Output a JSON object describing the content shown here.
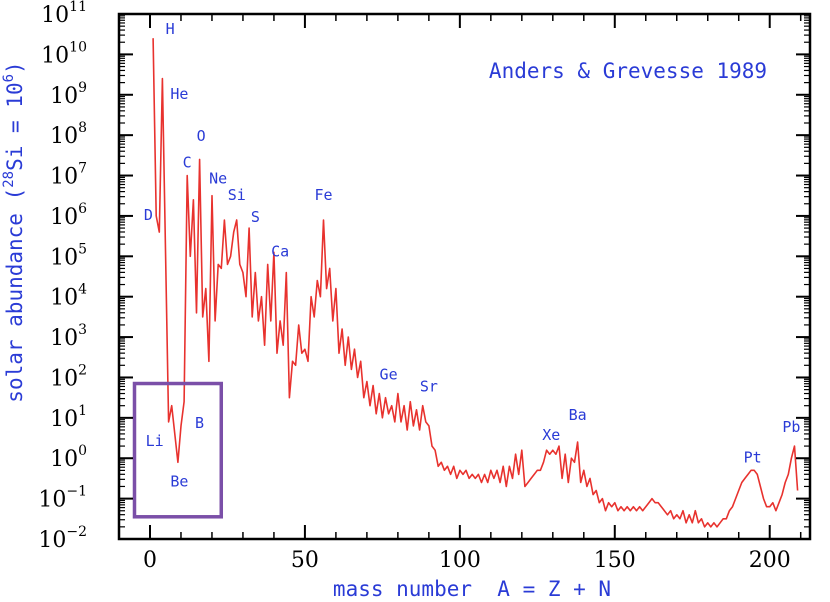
{
  "chart_data": {
    "type": "line",
    "annotation": "Anders & Grevesse 1989",
    "xlabel": "mass number  A = Z + N",
    "ylabel": "solar abundance (28Si = 10^6)",
    "xlim": [
      -10,
      213
    ],
    "ylim_log10": [
      -2,
      11
    ],
    "x_ticks": [
      0,
      50,
      100,
      150,
      200
    ],
    "y_tick_exponents": [
      -2,
      -1,
      0,
      1,
      2,
      3,
      4,
      5,
      6,
      7,
      8,
      9,
      10,
      11
    ],
    "grid": false,
    "line_color": "#e8322e",
    "label_color": "#2a3bd6",
    "box_color": "#7b4fa8",
    "highlight_box": {
      "x": [
        -5,
        23
      ],
      "y_log10": [
        -1.45,
        1.85
      ]
    },
    "series": [
      {
        "points_log10": [
          [
            1,
            10.4
          ],
          [
            2,
            6.0
          ],
          [
            3,
            5.6
          ],
          [
            4,
            9.4
          ],
          [
            6,
            0.9
          ],
          [
            7,
            1.3
          ],
          [
            9,
            -0.1
          ],
          [
            10,
            0.8
          ],
          [
            11,
            1.4
          ],
          [
            12,
            7.0
          ],
          [
            13,
            5.0
          ],
          [
            14,
            6.4
          ],
          [
            15,
            3.6
          ],
          [
            16,
            7.4
          ],
          [
            17,
            3.5
          ],
          [
            18,
            4.2
          ],
          [
            19,
            2.4
          ],
          [
            20,
            6.5
          ],
          [
            21,
            3.4
          ],
          [
            22,
            4.8
          ],
          [
            23,
            4.7
          ],
          [
            24,
            5.9
          ],
          [
            25,
            4.8
          ],
          [
            26,
            5.0
          ],
          [
            27,
            5.6
          ],
          [
            28,
            5.9
          ],
          [
            29,
            4.8
          ],
          [
            30,
            4.6
          ],
          [
            31,
            4.0
          ],
          [
            32,
            5.7
          ],
          [
            33,
            3.5
          ],
          [
            34,
            4.6
          ],
          [
            35,
            3.4
          ],
          [
            36,
            4.0
          ],
          [
            37,
            2.8
          ],
          [
            38,
            4.8
          ],
          [
            39,
            3.4
          ],
          [
            40,
            5.1
          ],
          [
            41,
            2.6
          ],
          [
            42,
            3.4
          ],
          [
            43,
            2.8
          ],
          [
            44,
            4.6
          ],
          [
            45,
            1.5
          ],
          [
            46,
            2.4
          ],
          [
            47,
            2.3
          ],
          [
            48,
            3.3
          ],
          [
            49,
            2.6
          ],
          [
            50,
            2.7
          ],
          [
            51,
            2.4
          ],
          [
            52,
            4.0
          ],
          [
            53,
            3.5
          ],
          [
            54,
            4.4
          ],
          [
            55,
            4.0
          ],
          [
            56,
            5.9
          ],
          [
            57,
            4.2
          ],
          [
            58,
            4.7
          ],
          [
            59,
            3.4
          ],
          [
            60,
            4.2
          ],
          [
            61,
            2.6
          ],
          [
            62,
            3.2
          ],
          [
            63,
            2.3
          ],
          [
            64,
            3.0
          ],
          [
            65,
            2.2
          ],
          [
            66,
            2.7
          ],
          [
            67,
            2.0
          ],
          [
            68,
            2.4
          ],
          [
            69,
            1.5
          ],
          [
            70,
            1.9
          ],
          [
            71,
            1.3
          ],
          [
            72,
            1.8
          ],
          [
            73,
            1.1
          ],
          [
            74,
            1.6
          ],
          [
            75,
            1.0
          ],
          [
            76,
            1.5
          ],
          [
            77,
            1.1
          ],
          [
            78,
            1.3
          ],
          [
            79,
            0.9
          ],
          [
            80,
            1.6
          ],
          [
            81,
            0.9
          ],
          [
            82,
            1.3
          ],
          [
            83,
            0.7
          ],
          [
            84,
            1.4
          ],
          [
            85,
            0.8
          ],
          [
            86,
            1.2
          ],
          [
            87,
            0.7
          ],
          [
            88,
            1.3
          ],
          [
            89,
            0.9
          ],
          [
            90,
            0.8
          ],
          [
            91,
            0.3
          ],
          [
            92,
            0.2
          ],
          [
            93,
            -0.2
          ],
          [
            94,
            -0.1
          ],
          [
            95,
            -0.3
          ],
          [
            96,
            -0.2
          ],
          [
            97,
            -0.4
          ],
          [
            98,
            -0.2
          ],
          [
            99,
            -0.5
          ],
          [
            100,
            -0.3
          ],
          [
            101,
            -0.4
          ],
          [
            102,
            -0.3
          ],
          [
            103,
            -0.5
          ],
          [
            104,
            -0.4
          ],
          [
            105,
            -0.5
          ],
          [
            106,
            -0.4
          ],
          [
            107,
            -0.6
          ],
          [
            108,
            -0.4
          ],
          [
            109,
            -0.6
          ],
          [
            110,
            -0.3
          ],
          [
            111,
            -0.5
          ],
          [
            112,
            -0.3
          ],
          [
            113,
            -0.6
          ],
          [
            114,
            -0.2
          ],
          [
            115,
            -0.7
          ],
          [
            116,
            -0.2
          ],
          [
            117,
            -0.5
          ],
          [
            118,
            0.1
          ],
          [
            119,
            -0.4
          ],
          [
            120,
            0.2
          ],
          [
            121,
            -0.7
          ],
          [
            122,
            -0.6
          ],
          [
            123,
            -0.5
          ],
          [
            124,
            -0.4
          ],
          [
            125,
            -0.3
          ],
          [
            126,
            -0.3
          ],
          [
            127,
            -0.1
          ],
          [
            128,
            0.2
          ],
          [
            129,
            0.1
          ],
          [
            130,
            0.2
          ],
          [
            131,
            0.1
          ],
          [
            132,
            0.3
          ],
          [
            133,
            -0.5
          ],
          [
            134,
            0.1
          ],
          [
            135,
            -0.6
          ],
          [
            136,
            0.0
          ],
          [
            137,
            -0.1
          ],
          [
            138,
            0.4
          ],
          [
            139,
            -0.6
          ],
          [
            140,
            -0.3
          ],
          [
            141,
            -0.7
          ],
          [
            142,
            -0.5
          ],
          [
            143,
            -0.9
          ],
          [
            144,
            -0.8
          ],
          [
            145,
            -1.1
          ],
          [
            146,
            -1.0
          ],
          [
            147,
            -1.3
          ],
          [
            148,
            -1.1
          ],
          [
            149,
            -1.2
          ],
          [
            150,
            -1.1
          ],
          [
            151,
            -1.3
          ],
          [
            152,
            -1.2
          ],
          [
            153,
            -1.3
          ],
          [
            154,
            -1.2
          ],
          [
            155,
            -1.3
          ],
          [
            156,
            -1.2
          ],
          [
            157,
            -1.3
          ],
          [
            158,
            -1.2
          ],
          [
            159,
            -1.3
          ],
          [
            160,
            -1.2
          ],
          [
            161,
            -1.1
          ],
          [
            162,
            -1.0
          ],
          [
            163,
            -1.1
          ],
          [
            164,
            -1.1
          ],
          [
            165,
            -1.2
          ],
          [
            166,
            -1.3
          ],
          [
            167,
            -1.4
          ],
          [
            168,
            -1.3
          ],
          [
            169,
            -1.5
          ],
          [
            170,
            -1.4
          ],
          [
            171,
            -1.5
          ],
          [
            172,
            -1.3
          ],
          [
            173,
            -1.6
          ],
          [
            174,
            -1.4
          ],
          [
            175,
            -1.6
          ],
          [
            176,
            -1.3
          ],
          [
            177,
            -1.6
          ],
          [
            178,
            -1.5
          ],
          [
            179,
            -1.7
          ],
          [
            180,
            -1.6
          ],
          [
            181,
            -1.7
          ],
          [
            182,
            -1.6
          ],
          [
            183,
            -1.7
          ],
          [
            184,
            -1.6
          ],
          [
            185,
            -1.5
          ],
          [
            186,
            -1.5
          ],
          [
            187,
            -1.3
          ],
          [
            188,
            -1.2
          ],
          [
            189,
            -1.0
          ],
          [
            190,
            -0.8
          ],
          [
            191,
            -0.6
          ],
          [
            192,
            -0.5
          ],
          [
            193,
            -0.4
          ],
          [
            194,
            -0.3
          ],
          [
            195,
            -0.3
          ],
          [
            196,
            -0.4
          ],
          [
            197,
            -0.7
          ],
          [
            198,
            -1.0
          ],
          [
            199,
            -1.2
          ],
          [
            200,
            -1.2
          ],
          [
            201,
            -1.1
          ],
          [
            202,
            -1.3
          ],
          [
            203,
            -1.1
          ],
          [
            204,
            -0.9
          ],
          [
            205,
            -0.6
          ],
          [
            206,
            -0.4
          ],
          [
            207,
            0.0
          ],
          [
            208,
            0.3
          ],
          [
            209,
            -0.8
          ]
        ]
      }
    ],
    "element_labels": [
      {
        "text": "H",
        "x": 6.5,
        "y_log10": 10.5
      },
      {
        "text": "He",
        "x": 9.5,
        "y_log10": 8.9
      },
      {
        "text": "D",
        "x": -0.5,
        "y_log10": 5.9
      },
      {
        "text": "Li",
        "x": 1.5,
        "y_log10": 0.3
      },
      {
        "text": "Be",
        "x": 9.5,
        "y_log10": -0.7
      },
      {
        "text": "B",
        "x": 16,
        "y_log10": 0.75
      },
      {
        "text": "C",
        "x": 12,
        "y_log10": 7.2
      },
      {
        "text": "O",
        "x": 16.5,
        "y_log10": 7.85
      },
      {
        "text": "Ne",
        "x": 22,
        "y_log10": 6.8
      },
      {
        "text": "Si",
        "x": 28,
        "y_log10": 6.4
      },
      {
        "text": "S",
        "x": 34,
        "y_log10": 5.85
      },
      {
        "text": "Ca",
        "x": 42,
        "y_log10": 5.0
      },
      {
        "text": "Fe",
        "x": 56,
        "y_log10": 6.4
      },
      {
        "text": "Ge",
        "x": 77,
        "y_log10": 1.95
      },
      {
        "text": "Sr",
        "x": 90,
        "y_log10": 1.65
      },
      {
        "text": "Xe",
        "x": 129.5,
        "y_log10": 0.45
      },
      {
        "text": "Ba",
        "x": 138,
        "y_log10": 0.95
      },
      {
        "text": "Pt",
        "x": 194.5,
        "y_log10": -0.1
      },
      {
        "text": "Pb",
        "x": 207,
        "y_log10": 0.65
      }
    ]
  }
}
